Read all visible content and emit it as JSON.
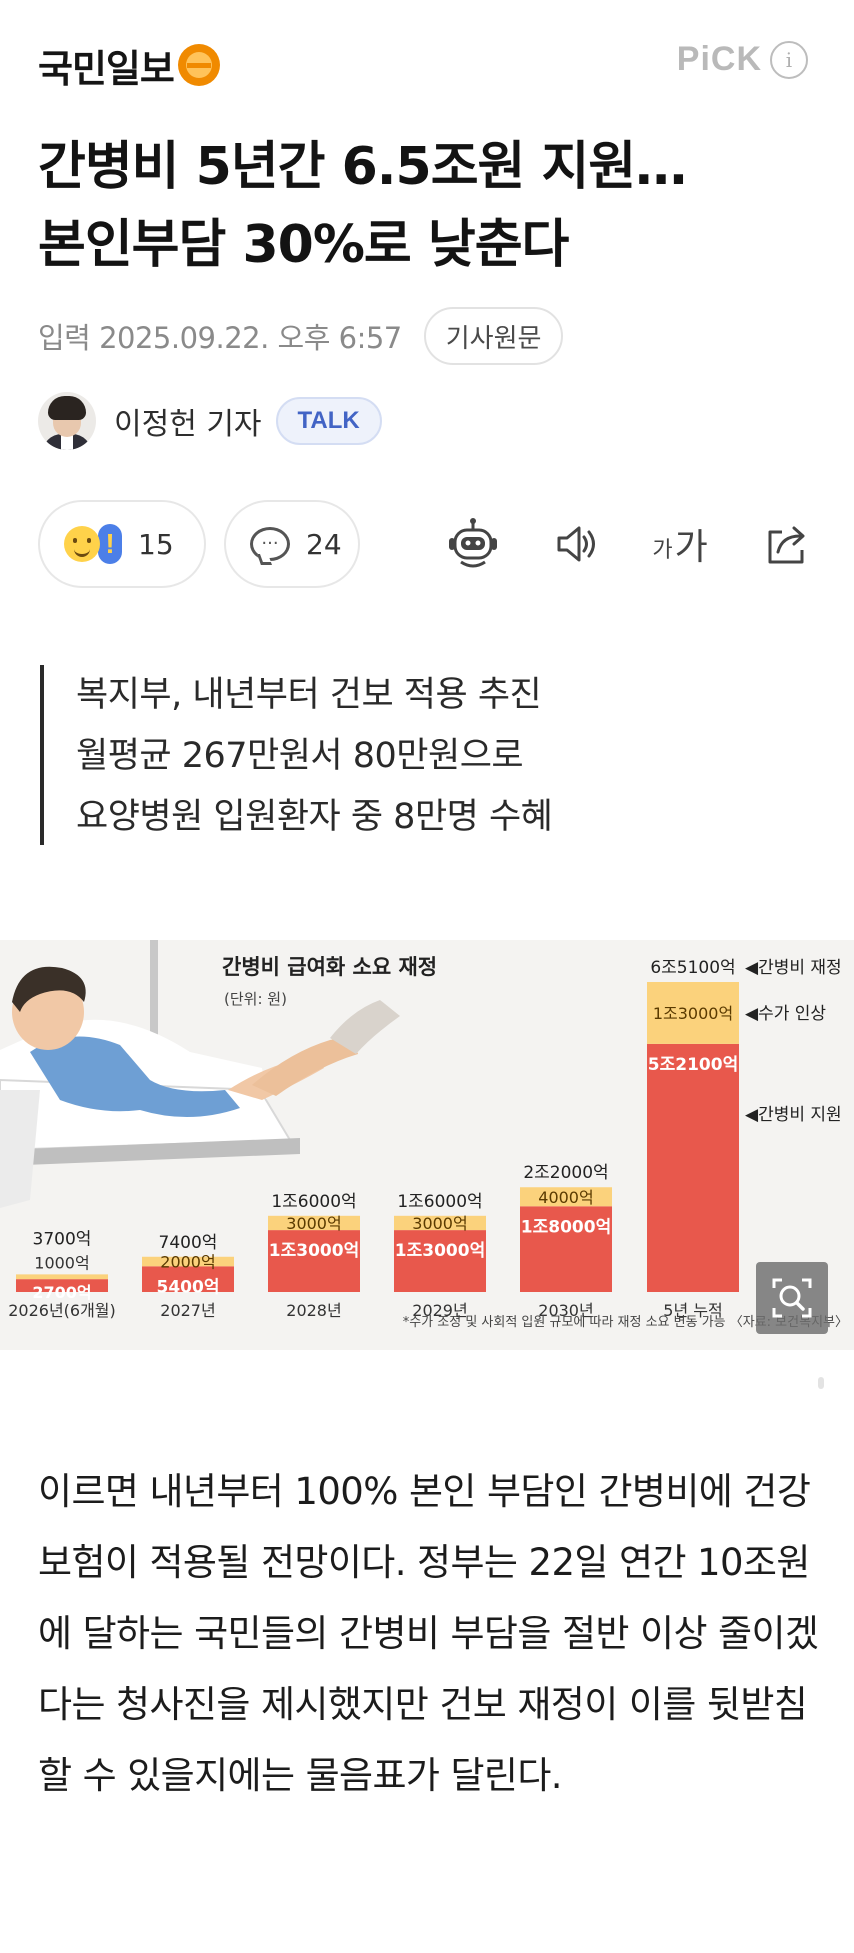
{
  "header": {
    "brand": "국민일보",
    "pick_label": "PiCK",
    "info_icon_glyph": "i"
  },
  "article": {
    "headline_line1": "간병비 5년간 6.5조원 지원…",
    "headline_line2": "본인부담 30%로 낮춘다",
    "date": "입력 2025.09.22. 오후 6:57",
    "original_button": "기사원문",
    "author": "이정헌 기자",
    "talk_badge": "TALK",
    "summary": [
      "복지부, 내년부터 건보 적용 추진",
      "월평균 267만원서 80만원으로",
      "요양병원 입원환자 중 8만명 수혜"
    ],
    "body": "이르면 내년부터 100% 본인 부담인 간병비에 건강보험이 적용될 전망이다. 정부는 22일 연간 10조원에 달하는 국민들의 간병비 부담을 절반 이상 줄이겠다는 청사진을 제시했지만 건보 재정이 이를 뒷받침할 수 있을지에는 물음표가 달린다."
  },
  "actions": {
    "reaction_count": "15",
    "comment_count": "24",
    "comment_glyph": "···",
    "fontsize_small": "가",
    "fontsize_large": "가",
    "icons": [
      "smile-emoji-icon",
      "exclamation-icon",
      "comment-bubble-icon",
      "robot-icon",
      "speaker-icon",
      "font-size-icon",
      "share-icon",
      "zoom-icon"
    ]
  },
  "colors": {
    "support": "#e8584c",
    "fee_increase": "#fbd27c",
    "brand_orange": "#f08a00",
    "talk_blue": "#4264c5"
  },
  "infographic": {
    "note": "*수가 조정 및 사회적 입원 규모에 따라 재정 소요 변동 가능 〈자료: 보건복지부〉"
  },
  "chart_data": {
    "type": "bar",
    "title": "간병비 급여화 소요 재정",
    "subtitle": "(단위: 원)",
    "categories": [
      "2026년(6개월)",
      "2027년",
      "2028년",
      "2029년",
      "2030년",
      "5년 누적"
    ],
    "series": [
      {
        "name": "간병비 지원",
        "values": [
          2700,
          5400,
          13000,
          13000,
          18000,
          52100
        ],
        "labels": [
          "2700억",
          "5400억",
          "1조3000억",
          "1조3000억",
          "1조8000억",
          "5조2100억"
        ]
      },
      {
        "name": "수가 인상",
        "values": [
          1000,
          2000,
          3000,
          3000,
          4000,
          13000
        ],
        "labels": [
          "1000억",
          "2000억",
          "3000억",
          "3000억",
          "4000억",
          "1조3000억"
        ]
      }
    ],
    "totals": [
      3700,
      7400,
      16000,
      16000,
      22000,
      65100
    ],
    "total_labels": [
      "3700억",
      "7400억",
      "1조6000억",
      "1조6000억",
      "2조2000억",
      "6조5100억"
    ],
    "annotations": [
      "◀간병비 재정",
      "◀수가 인상",
      "◀간병비 지원"
    ],
    "unit": "억 원",
    "ylim": [
      0,
      65100
    ]
  }
}
